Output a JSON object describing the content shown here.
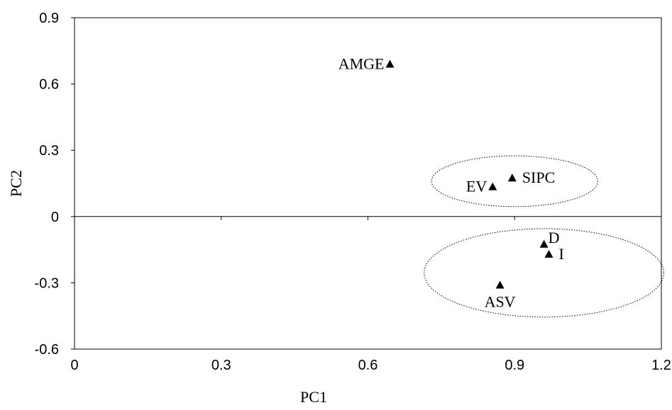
{
  "chart_data": {
    "type": "scatter",
    "xlabel": "PC1",
    "ylabel": "PC2",
    "xlim": [
      0,
      1.2
    ],
    "ylim": [
      -0.6,
      0.9
    ],
    "x_ticks": [
      0,
      0.3,
      0.6,
      0.9,
      1.2
    ],
    "x_tick_labels": [
      "0",
      "0.3",
      "0.6",
      "0.9",
      "1.2"
    ],
    "y_ticks": [
      -0.6,
      -0.3,
      0,
      0.3,
      0.6,
      0.9
    ],
    "y_tick_labels": [
      "-0.6",
      "-0.3",
      "0",
      "0.3",
      "0.6",
      "0.9"
    ],
    "grid": false,
    "marker": "triangle",
    "marker_color": "#000000",
    "points": [
      {
        "label": "AMGE",
        "x": 0.645,
        "y": 0.69,
        "label_side": "left"
      },
      {
        "label": "EV",
        "x": 0.855,
        "y": 0.135,
        "label_side": "left"
      },
      {
        "label": "SIPC",
        "x": 0.895,
        "y": 0.175,
        "label_side": "right"
      },
      {
        "label": "D",
        "x": 0.96,
        "y": -0.125,
        "label_side": "above-right"
      },
      {
        "label": "I",
        "x": 0.97,
        "y": -0.17,
        "label_side": "right"
      },
      {
        "label": "ASV",
        "x": 0.87,
        "y": -0.31,
        "label_side": "below"
      }
    ],
    "groups": [
      {
        "members": [
          "EV",
          "SIPC"
        ],
        "center": [
          0.9,
          0.16
        ],
        "rx": 0.17,
        "ry": 0.115
      },
      {
        "members": [
          "D",
          "I",
          "ASV"
        ],
        "center": [
          0.96,
          -0.255
        ],
        "rx": 0.245,
        "ry": 0.2
      }
    ]
  }
}
